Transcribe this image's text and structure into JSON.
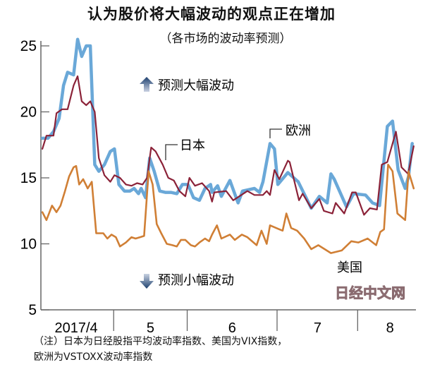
{
  "chart_data": {
    "type": "line",
    "title": "认为股价将大幅波动的观点正在增加",
    "subtitle": "（各市场的波动率预测）",
    "xlabel": "",
    "ylabel": "",
    "x_unit": "trading days from start of April 2017 (approx.)",
    "xlim": [
      0,
      101
    ],
    "ylim": [
      5,
      25
    ],
    "yticks": [
      5,
      10,
      15,
      20,
      25
    ],
    "month_boundaries": [
      19.6,
      39.4,
      63.6,
      85.3
    ],
    "xtick_labels": [
      {
        "label": "2017/4",
        "center": 9.5
      },
      {
        "label": "5",
        "center": 29.5
      },
      {
        "label": "6",
        "center": 51.5
      },
      {
        "label": "7",
        "center": 74.5
      },
      {
        "label": "8",
        "center": 94
      }
    ],
    "grid": false,
    "series": [
      {
        "name": "欧洲",
        "color": "#6aa8d8",
        "x": [
          0.4,
          1.9,
          3.4,
          4.9,
          6.1,
          7.2,
          8.8,
          9.9,
          11.0,
          12.2,
          13.3,
          14.5,
          15.6,
          17.1,
          18.7,
          19.8,
          21.0,
          22.5,
          24.0,
          25.1,
          26.3,
          27.0,
          28.2,
          29.3,
          30.5,
          32.0,
          33.5,
          35.0,
          36.6,
          38.1,
          39.6,
          41.1,
          42.7,
          44.2,
          45.7,
          46.1,
          47.6,
          48.6,
          50.9,
          53.1,
          54.3,
          57.5,
          58.9,
          59.8,
          61.7,
          62.9,
          63.8,
          66.5,
          69.3,
          72.8,
          75.0,
          77.1,
          78.1,
          79.0,
          82.3,
          84.2,
          87.4,
          89.3,
          91.2,
          93.3,
          94.7,
          96.2,
          98.1,
          99.0,
          100.0
        ],
        "y": [
          18,
          18,
          18.5,
          19.5,
          22,
          23,
          22.8,
          25.5,
          24.2,
          25,
          25,
          16,
          15.5,
          16,
          17,
          17.2,
          14.5,
          14,
          14,
          14.2,
          13.8,
          14.2,
          13.5,
          16.5,
          15.5,
          14,
          13.9,
          13.9,
          13.8,
          14.5,
          14.5,
          13.5,
          13.3,
          14.2,
          14.5,
          13.9,
          14.4,
          13.6,
          14.8,
          13.1,
          14,
          14.2,
          13.9,
          14.7,
          17.6,
          17.2,
          14.5,
          15.4,
          14.7,
          12.7,
          13.6,
          13.1,
          15.3,
          14.9,
          12.8,
          13.8,
          13.7,
          13.1,
          12.9,
          18.9,
          19.3,
          15.6,
          14.2,
          15.1,
          17.6
        ]
      },
      {
        "name": "日本",
        "color": "#8b2238",
        "x": [
          0.4,
          1.5,
          3.4,
          4.2,
          5.7,
          7.2,
          8.8,
          9.9,
          11.0,
          12.2,
          13.3,
          14.5,
          15.6,
          17.1,
          18.7,
          19.8,
          21.3,
          22.9,
          24.4,
          25.9,
          27.4,
          28.6,
          29.7,
          30.9,
          32.8,
          34.3,
          35.8,
          37.3,
          38.9,
          40.0,
          41.5,
          43.4,
          45.3,
          46.1,
          46.7,
          49.9,
          51.8,
          55.6,
          57.5,
          59.8,
          60.8,
          61.7,
          62.9,
          64.2,
          66.5,
          67.0,
          69.5,
          70.5,
          72.8,
          75.0,
          76.2,
          78.5,
          79.4,
          81.7,
          83.8,
          84.8,
          87.0,
          88.6,
          90.5,
          91.8,
          93.3,
          95.6,
          97.1,
          98.9,
          100.4
        ],
        "y": [
          17.2,
          18.2,
          18.2,
          19.9,
          20.2,
          20.2,
          22,
          22.7,
          20.8,
          20.5,
          20.8,
          20,
          16.5,
          15.2,
          14.7,
          15.2,
          15,
          14.5,
          14.4,
          14.6,
          14.5,
          15,
          17.3,
          17,
          16,
          15,
          14.8,
          14,
          13.6,
          15,
          14.4,
          14.6,
          14,
          13.2,
          13.9,
          14,
          13.3,
          14,
          13.7,
          13.7,
          14,
          13.7,
          15.6,
          14.9,
          16.3,
          16.2,
          13.3,
          13.8,
          12.7,
          13.4,
          12.5,
          12.3,
          13.1,
          12.3,
          13.9,
          13.9,
          12.2,
          12.7,
          12.6,
          16,
          16.2,
          18.5,
          15.8,
          15.3,
          17.4
        ]
      },
      {
        "name": "美国",
        "color": "#d07f35",
        "x": [
          0.4,
          1.5,
          3.0,
          4.2,
          5.3,
          6.5,
          7.6,
          8.8,
          9.5,
          10.3,
          11.4,
          12.6,
          13.7,
          14.9,
          16.8,
          17.9,
          19.0,
          20.2,
          21.3,
          22.9,
          24.4,
          25.5,
          26.7,
          27.8,
          29.0,
          30.1,
          31.2,
          32.4,
          33.9,
          35.4,
          36.6,
          37.7,
          38.9,
          40.4,
          41.5,
          42.7,
          44.2,
          45.3,
          46.1,
          47.4,
          48.6,
          50.9,
          52.2,
          54.1,
          55.6,
          58.1,
          59.4,
          60.8,
          61.7,
          64.2,
          65.1,
          66.1,
          67.4,
          69.0,
          70.9,
          72.8,
          74.7,
          78.1,
          81.0,
          83.6,
          85.5,
          88.0,
          90.3,
          91.4,
          92.4,
          93.5,
          94.7,
          96.0,
          98.1,
          99.0,
          100.4
        ],
        "y": [
          12.4,
          11.8,
          12.9,
          12.4,
          12.9,
          14,
          15.1,
          15.8,
          15.9,
          14.5,
          14.9,
          14.2,
          14.7,
          10.8,
          10.8,
          10.4,
          10.7,
          10.5,
          9.8,
          10.1,
          10.5,
          10.4,
          10.5,
          10.6,
          15.5,
          14.5,
          11.5,
          10.8,
          10,
          9.9,
          9.8,
          10.3,
          10.3,
          9.9,
          9.8,
          10.1,
          10.4,
          10.2,
          10.7,
          11.4,
          10.4,
          10.7,
          10.3,
          10.7,
          10.5,
          9.9,
          11,
          10,
          11.4,
          11.1,
          11,
          12.3,
          11.2,
          11,
          10.4,
          9.6,
          9.9,
          9.3,
          9.5,
          10.2,
          10.1,
          10.4,
          9.9,
          10.9,
          11.1,
          16,
          15.5,
          12.3,
          11.8,
          15.5,
          14.2
        ]
      }
    ],
    "annotations": {
      "up": "预测大幅波动",
      "down": "预测小幅波动",
      "japan": "日本",
      "europe": "欧洲",
      "us": "美国"
    },
    "legend": "inline labels"
  },
  "notes": {
    "line1": "（注）日本为日经股指平均波动率指数、美国为VIX指数，",
    "line2": "欧洲为VSTOXX波动率指数"
  },
  "watermark": "日经中文网"
}
